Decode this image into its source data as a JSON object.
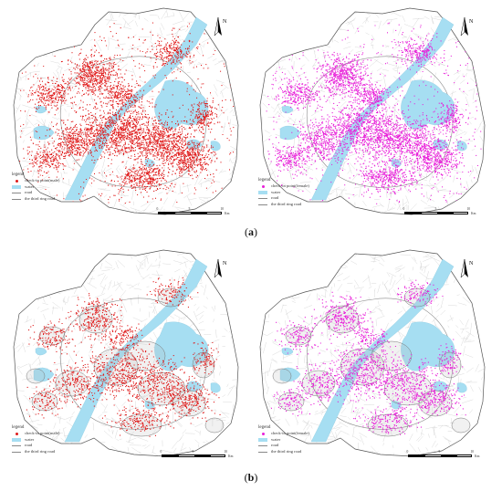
{
  "figure": {
    "panels": [
      {
        "legend": {
          "title": "legend",
          "items": [
            {
              "label": "check-in point(male)",
              "kind": "point",
              "color": "#e01b1b"
            },
            {
              "label": "water",
              "kind": "area",
              "color": "#a6def2"
            },
            {
              "label": "road",
              "kind": "line",
              "color": "#888888"
            },
            {
              "label": "the third ring road",
              "kind": "line",
              "color": "#888888"
            }
          ]
        },
        "scale": {
          "ticks": [
            "0",
            "5",
            "10"
          ],
          "unit": "Km"
        },
        "point_color": "#e01b1b",
        "buffered": false
      },
      {
        "legend": {
          "title": "legend",
          "items": [
            {
              "label": "check-in point(female)",
              "kind": "point",
              "color": "#e81fd9"
            },
            {
              "label": "water",
              "kind": "area",
              "color": "#a6def2"
            },
            {
              "label": "road",
              "kind": "line",
              "color": "#888888"
            },
            {
              "label": "the third ring road",
              "kind": "line",
              "color": "#888888"
            }
          ]
        },
        "scale": {
          "ticks": [
            "0",
            "5",
            "10"
          ],
          "unit": "Km"
        },
        "point_color": "#e81fd9",
        "buffered": false
      },
      {
        "legend": {
          "title": "legend",
          "items": [
            {
              "label": "check-in point(male)",
              "kind": "point",
              "color": "#e01b1b"
            },
            {
              "label": "water",
              "kind": "area",
              "color": "#a6def2"
            },
            {
              "label": "road",
              "kind": "line",
              "color": "#888888"
            },
            {
              "label": "the third ring road",
              "kind": "line",
              "color": "#888888"
            }
          ]
        },
        "scale": {
          "ticks": [
            "0",
            "5",
            "10"
          ],
          "unit": "Km"
        },
        "point_color": "#e01b1b",
        "buffered": true
      },
      {
        "legend": {
          "title": "legend",
          "items": [
            {
              "label": "check-in point(female)",
              "kind": "point",
              "color": "#e81fd9"
            },
            {
              "label": "water",
              "kind": "area",
              "color": "#a6def2"
            },
            {
              "label": "road",
              "kind": "line",
              "color": "#888888"
            },
            {
              "label": "the third ring road",
              "kind": "line",
              "color": "#888888"
            }
          ]
        },
        "scale": {
          "ticks": [
            "0",
            "5",
            "10"
          ],
          "unit": "Km"
        },
        "point_color": "#e81fd9",
        "buffered": true
      }
    ],
    "north_label": "N",
    "captions": {
      "a": {
        "open": "(",
        "letter": "a",
        "close": ")"
      },
      "b": {
        "open": "(",
        "letter": "b",
        "close": ")"
      }
    },
    "colors": {
      "water": "#a6def2",
      "land": "#ffffff",
      "road": "#bdbdbd",
      "boundary": "#555555"
    }
  }
}
